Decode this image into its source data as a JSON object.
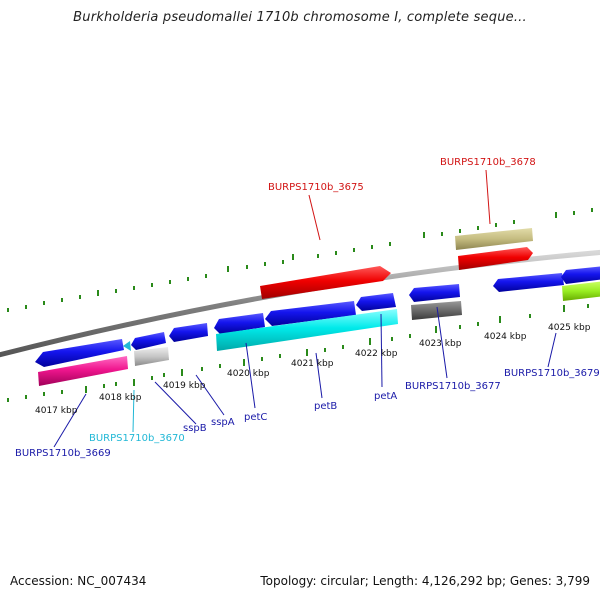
{
  "title": "Burkholderia pseudomallei 1710b chromosome I, complete seque...",
  "footer": {
    "accession": "Accession: NC_007434",
    "summary": "Topology: circular; Length: 4,126,292 bp; Genes: 3,799"
  },
  "colors": {
    "backbone": "#7f7f7f",
    "tick": "#2a8a1a",
    "label_blue": "#1a1aa8",
    "label_cyan": "#21b8d6",
    "label_red": "#d21414"
  },
  "scale_labels": [
    "4017 kbp",
    "4018 kbp",
    "4019 kbp",
    "4020 kbp",
    "4021 kbp",
    "4022 kbp",
    "4023 kbp",
    "4024 kbp",
    "4025 kbp"
  ],
  "gene_labels": [
    {
      "id": "BURPS1710b_3669",
      "text": "BURPS1710b_3669",
      "color": "#1a1aa8"
    },
    {
      "id": "BURPS1710b_3670",
      "text": "BURPS1710b_3670",
      "color": "#21b8d6"
    },
    {
      "id": "sspB",
      "text": "sspB",
      "color": "#1a1aa8"
    },
    {
      "id": "sspA",
      "text": "sspA",
      "color": "#1a1aa8"
    },
    {
      "id": "petC",
      "text": "petC",
      "color": "#1a1aa8"
    },
    {
      "id": "petB",
      "text": "petB",
      "color": "#1a1aa8"
    },
    {
      "id": "petA",
      "text": "petA",
      "color": "#1a1aa8"
    },
    {
      "id": "BURPS1710b_3677",
      "text": "BURPS1710b_3677",
      "color": "#1a1aa8"
    },
    {
      "id": "BURPS1710b_3679",
      "text": "BURPS1710b_3679",
      "color": "#1a1aa8"
    },
    {
      "id": "BURPS1710b_3675",
      "text": "BURPS1710b_3675",
      "color": "#d21414"
    },
    {
      "id": "BURPS1710b_3678",
      "text": "BURPS1710b_3678",
      "color": "#d21414"
    }
  ]
}
